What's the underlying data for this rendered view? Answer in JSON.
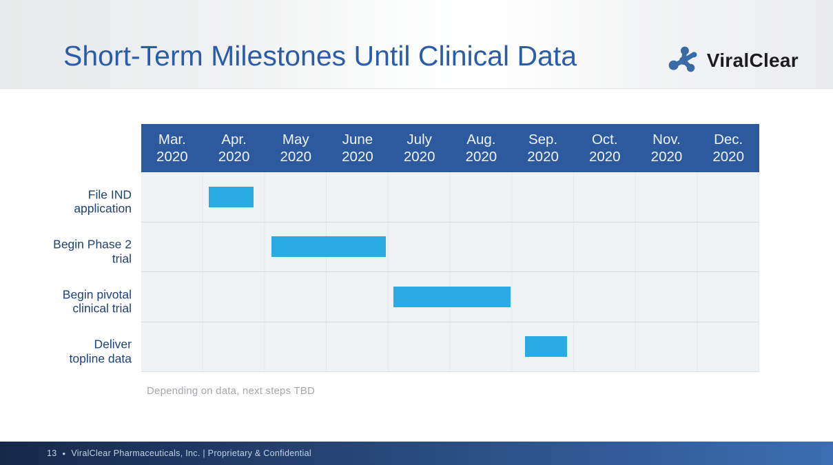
{
  "slide": {
    "title": "Short-Term Milestones Until Clinical Data",
    "logo": {
      "text": "ViralClear",
      "icon": "molecule-icon"
    },
    "footer": {
      "page_number": "13",
      "separator": "•",
      "text": "ViralClear Pharmaceuticals, Inc. | Proprietary & Confidential"
    }
  },
  "colors": {
    "title_blue": "#2b5ca8",
    "header_blue": "#2d5a9e",
    "header_text": "#eef3f8",
    "bar_blue": "#2aace2",
    "row_bg": "#eff3f6",
    "row_divider": "#d7dce1",
    "grid_line": "#e3e8ec",
    "label_blue": "#1e4176",
    "note_gray": "#a3a7ac",
    "footer_left": "#16284a",
    "footer_right": "#3b6eb2",
    "footer_text": "#c3d2e6",
    "logo_icon_blue": "#3a6ba5",
    "logo_text_dark": "#1d1d1f"
  },
  "chart_data": {
    "type": "bar",
    "subtype": "gantt-timeline",
    "title": "Short-Term Milestones Until Clinical Data",
    "grid": true,
    "legend": "none",
    "bar_color": "#2aace2",
    "x_axis_unit": "months (Mar 2020 = 0, Dec 2020 = 10)",
    "x_range": [
      0,
      10
    ],
    "columns": [
      {
        "month": "Mar.",
        "year": "2020"
      },
      {
        "month": "Apr.",
        "year": "2020"
      },
      {
        "month": "May",
        "year": "2020"
      },
      {
        "month": "June",
        "year": "2020"
      },
      {
        "month": "July",
        "year": "2020"
      },
      {
        "month": "Aug.",
        "year": "2020"
      },
      {
        "month": "Sep.",
        "year": "2020"
      },
      {
        "month": "Oct.",
        "year": "2020"
      },
      {
        "month": "Nov.",
        "year": "2020"
      },
      {
        "month": "Dec.",
        "year": "2020"
      }
    ],
    "tasks": [
      {
        "label": "File IND application",
        "label_lines": [
          "File IND",
          "application"
        ],
        "start_month": 1.09,
        "end_month": 1.82,
        "period": "April 2020"
      },
      {
        "label": "Begin Phase 2 trial",
        "label_lines": [
          "Begin Phase 2",
          "trial"
        ],
        "start_month": 2.11,
        "end_month": 3.96,
        "period": "May–June 2020"
      },
      {
        "label": "Begin pivotal clinical trial",
        "label_lines": [
          "Begin pivotal",
          "clinical trial"
        ],
        "start_month": 4.08,
        "end_month": 5.98,
        "period": "July–August 2020"
      },
      {
        "label": "Deliver topline data",
        "label_lines": [
          "Deliver",
          "topline data"
        ],
        "start_month": 6.21,
        "end_month": 6.89,
        "period": "September 2020"
      }
    ],
    "footnote": "Depending on data, next steps TBD"
  }
}
